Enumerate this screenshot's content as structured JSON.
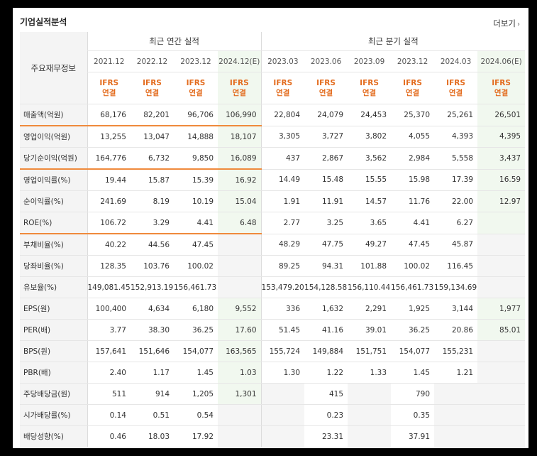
{
  "header": {
    "title": "기업실적분석",
    "more_label": "더보기",
    "more_icon": "chevron-right-icon"
  },
  "table": {
    "corner_label": "주요재무정보",
    "groups": {
      "annual": "최근 연간 실적",
      "quarterly": "최근 분기 실적"
    },
    "periods": [
      "2021.12",
      "2022.12",
      "2023.12",
      "2024.12(E)",
      "2023.03",
      "2023.06",
      "2023.09",
      "2023.12",
      "2024.03",
      "2024.06(E)"
    ],
    "ifrs_line1": "IFRS",
    "ifrs_line2": "연결",
    "rows": [
      {
        "label": "매출액(억원)",
        "values": [
          "68,176",
          "82,201",
          "96,706",
          "106,990",
          "22,804",
          "24,079",
          "24,453",
          "25,370",
          "25,261",
          "26,501"
        ]
      },
      {
        "label": "영업이익(억원)",
        "values": [
          "13,255",
          "13,047",
          "14,888",
          "18,107",
          "3,305",
          "3,727",
          "3,802",
          "4,055",
          "4,393",
          "4,395"
        ]
      },
      {
        "label": "당기순이익(억원)",
        "values": [
          "164,776",
          "6,732",
          "9,850",
          "16,089",
          "437",
          "2,867",
          "3,562",
          "2,984",
          "5,558",
          "3,437"
        ]
      },
      {
        "label": "영업이익률(%)",
        "values": [
          "19.44",
          "15.87",
          "15.39",
          "16.92",
          "14.49",
          "15.48",
          "15.55",
          "15.98",
          "17.39",
          "16.59"
        ]
      },
      {
        "label": "순이익률(%)",
        "values": [
          "241.69",
          "8.19",
          "10.19",
          "15.04",
          "1.91",
          "11.91",
          "14.57",
          "11.76",
          "22.00",
          "12.97"
        ]
      },
      {
        "label": "ROE(%)",
        "values": [
          "106.72",
          "3.29",
          "4.41",
          "6.48",
          "2.77",
          "3.25",
          "3.65",
          "4.41",
          "6.27",
          ""
        ]
      },
      {
        "label": "부채비율(%)",
        "values": [
          "40.22",
          "44.56",
          "47.45",
          "",
          "48.29",
          "47.75",
          "49.27",
          "47.45",
          "45.87",
          ""
        ]
      },
      {
        "label": "당좌비율(%)",
        "values": [
          "128.35",
          "103.76",
          "100.02",
          "",
          "89.25",
          "94.31",
          "101.88",
          "100.02",
          "116.45",
          ""
        ]
      },
      {
        "label": "유보율(%)",
        "values": [
          "149,081.45",
          "152,913.19",
          "156,461.73",
          "",
          "153,479.20",
          "154,128.58",
          "156,110.44",
          "156,461.73",
          "159,134.69",
          ""
        ]
      },
      {
        "label": "EPS(원)",
        "values": [
          "100,400",
          "4,634",
          "6,180",
          "9,552",
          "336",
          "1,632",
          "2,291",
          "1,925",
          "3,144",
          "1,977"
        ]
      },
      {
        "label": "PER(배)",
        "values": [
          "3.77",
          "38.30",
          "36.25",
          "17.60",
          "51.45",
          "41.16",
          "39.01",
          "36.25",
          "20.86",
          "85.01"
        ]
      },
      {
        "label": "BPS(원)",
        "values": [
          "157,641",
          "151,646",
          "154,077",
          "163,565",
          "155,724",
          "149,884",
          "151,751",
          "154,077",
          "155,231",
          ""
        ]
      },
      {
        "label": "PBR(배)",
        "values": [
          "2.40",
          "1.17",
          "1.45",
          "1.03",
          "1.30",
          "1.22",
          "1.33",
          "1.45",
          "1.21",
          ""
        ]
      },
      {
        "label": "주당배당금(원)",
        "values": [
          "511",
          "914",
          "1,205",
          "1,301",
          "",
          "415",
          "",
          "790",
          "",
          ""
        ]
      },
      {
        "label": "시가배당률(%)",
        "values": [
          "0.14",
          "0.51",
          "0.54",
          "",
          "",
          "0.23",
          "",
          "0.35",
          "",
          ""
        ]
      },
      {
        "label": "배당성향(%)",
        "values": [
          "0.46",
          "18.03",
          "17.92",
          "",
          "",
          "23.31",
          "",
          "37.91",
          "",
          ""
        ]
      }
    ]
  }
}
